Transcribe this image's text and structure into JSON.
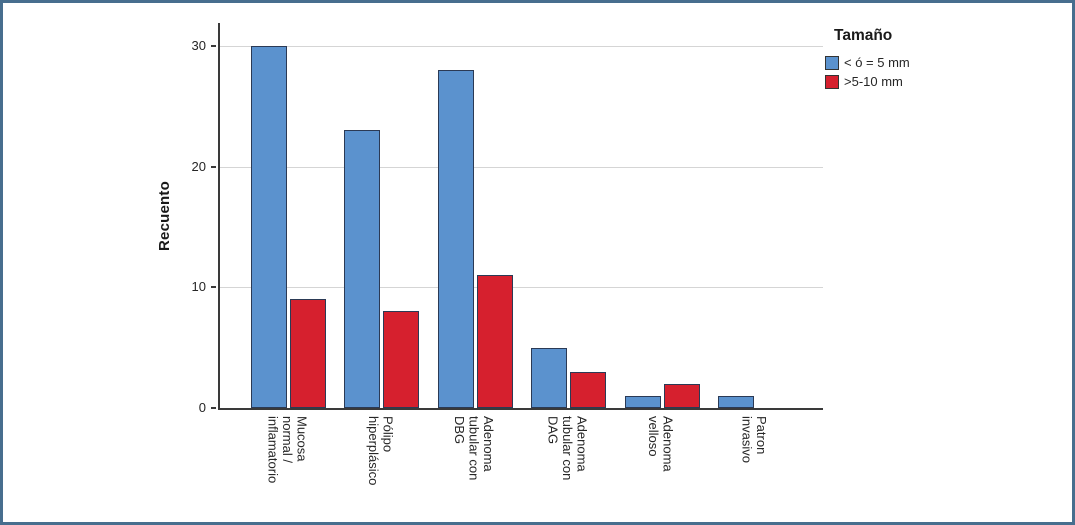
{
  "page": {
    "frame_color": "#476E8E",
    "background": "#ffffff"
  },
  "chart_data": {
    "type": "bar",
    "title": "",
    "xlabel": "",
    "ylabel": "Recuento",
    "ylim": [
      0,
      31.9
    ],
    "yticks": [
      0,
      10,
      20,
      30
    ],
    "grid": "horizontal",
    "gridline_color": "#d5d5d5",
    "bar_border_color": "#2B3A55",
    "legend_title": "Tamaño",
    "legend_position": "top-right-outside",
    "categories": [
      "Mucosa\nnormal /\ninflamatorio",
      "Pólipo\nhiperplásico",
      "Adenoma\ntubular con\nDBG",
      "Adenoma\ntubular con\nDAG",
      "Adenoma\nvelloso",
      "Patron\ninvasivo"
    ],
    "series": [
      {
        "name": "< ó = 5 mm",
        "color": "#5B92CE",
        "values": [
          30,
          23,
          28,
          5,
          1,
          1
        ]
      },
      {
        "name": ">5-10 mm",
        "color": "#D6202E",
        "values": [
          9,
          8,
          11,
          3,
          2,
          0
        ]
      }
    ]
  }
}
